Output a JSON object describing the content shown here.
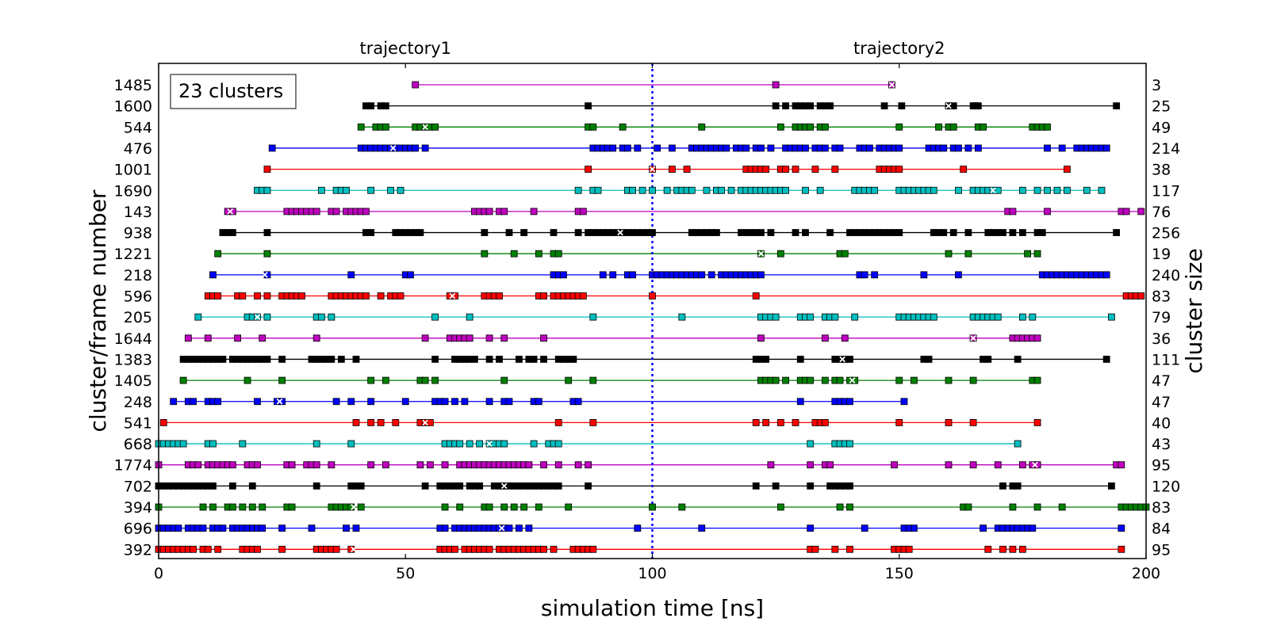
{
  "chart_data": {
    "type": "scatter",
    "xlabel": "simulation time [ns]",
    "ylabel": "cluster/frame number",
    "y2label": "cluster size",
    "xlim": [
      0,
      200
    ],
    "xticks": [
      0,
      50,
      100,
      150,
      200
    ],
    "top_labels": [
      "trajectory1",
      "trajectory2"
    ],
    "divider_x": 100,
    "divider_color": "#0000ff",
    "info_box": "23 clusters",
    "series": [
      {
        "frame": "1485",
        "size": "3",
        "color": "#bf00bf",
        "x": [
          52,
          125,
          148.5
        ],
        "centroid": 148.5
      },
      {
        "frame": "1600",
        "size": "25",
        "color": "#000000",
        "x": [
          42,
          43,
          45,
          46,
          87,
          125,
          127,
          129,
          130,
          131,
          132,
          134,
          135,
          136,
          147,
          150.5,
          160,
          161,
          165,
          165.5,
          166,
          194
        ],
        "centroid": 160
      },
      {
        "frame": "544",
        "size": "49",
        "color": "#008000",
        "x": [
          41,
          44,
          45,
          46,
          52,
          53,
          54,
          55,
          56,
          87,
          88,
          94,
          110,
          126,
          129,
          130,
          131,
          132,
          134,
          135,
          150,
          158,
          160,
          161,
          166,
          167,
          177,
          178,
          179,
          180
        ],
        "centroid": 54
      },
      {
        "frame": "476",
        "size": "214",
        "color": "#0000ff",
        "x": [
          23,
          41,
          42,
          43,
          44,
          45,
          46,
          47,
          48,
          49,
          50,
          51,
          52,
          54,
          88,
          89,
          90,
          91,
          92,
          94,
          95,
          97,
          101,
          104,
          108,
          109,
          110,
          111,
          112,
          113,
          114,
          115,
          117,
          118,
          119,
          121,
          122,
          124,
          127,
          128,
          129,
          130,
          131,
          133,
          134,
          135,
          137,
          138,
          142,
          143,
          144,
          146,
          147,
          148,
          149,
          150,
          156,
          157,
          158,
          159,
          161,
          162,
          164,
          166,
          180,
          183,
          186,
          187,
          188,
          189,
          190,
          191,
          192
        ],
        "centroid": 47.5
      },
      {
        "frame": "1001",
        "size": "38",
        "color": "#ff0000",
        "x": [
          22,
          87,
          100,
          104,
          107,
          119,
          120,
          121,
          122,
          123,
          126,
          127,
          129,
          133,
          137,
          146,
          147,
          148,
          149,
          150,
          163,
          184
        ],
        "centroid": 100
      },
      {
        "frame": "1690",
        "size": "117",
        "color": "#00bfbf",
        "x": [
          20,
          21,
          22,
          33,
          36,
          37,
          38,
          43,
          47,
          49,
          85,
          88,
          89,
          95,
          96,
          98,
          100,
          103,
          105,
          106,
          107,
          108,
          111,
          113,
          114,
          116,
          118,
          119,
          120,
          121,
          122,
          123,
          124,
          125,
          126,
          127,
          131,
          134,
          141,
          142,
          143,
          144,
          145,
          150,
          151,
          152,
          153,
          154,
          155,
          156,
          157,
          162,
          165,
          166,
          167,
          168,
          169,
          170,
          175,
          178,
          180,
          182,
          184,
          188,
          191
        ],
        "centroid": 169
      },
      {
        "frame": "143",
        "size": "76",
        "color": "#bf00bf",
        "x": [
          14,
          15,
          26,
          27,
          28,
          29,
          30,
          31,
          32,
          35,
          36,
          38,
          39,
          40,
          41,
          42,
          64,
          65,
          66,
          67,
          69,
          70,
          76,
          85,
          86,
          172,
          173,
          180,
          195,
          196,
          199
        ],
        "centroid": 14.5
      },
      {
        "frame": "938",
        "size": "256",
        "color": "#000000",
        "x": [
          13,
          14,
          15,
          22,
          42,
          43,
          48,
          49,
          50,
          51,
          52,
          53,
          66,
          71,
          74,
          80,
          85,
          87,
          88,
          89,
          90,
          91,
          92,
          93,
          94,
          95,
          96,
          97,
          98,
          99,
          100,
          108,
          109,
          110,
          111,
          112,
          113,
          118,
          119,
          120,
          121,
          122,
          124,
          129,
          131,
          136,
          140,
          141,
          142,
          143,
          144,
          145,
          146,
          147,
          148,
          149,
          150,
          157,
          158,
          159,
          161,
          164,
          168,
          169,
          170,
          171,
          173,
          175,
          178,
          179,
          194
        ],
        "centroid": 93.5
      },
      {
        "frame": "1221",
        "size": "19",
        "color": "#008000",
        "x": [
          12,
          22,
          66,
          72,
          77,
          80,
          81,
          122,
          126,
          138,
          139,
          160,
          164,
          176,
          178
        ],
        "centroid": 122
      },
      {
        "frame": "218",
        "size": "240",
        "color": "#0000ff",
        "x": [
          11,
          22,
          39,
          50,
          51,
          80,
          81,
          82,
          90,
          92,
          95,
          96,
          100,
          101,
          102,
          103,
          104,
          105,
          106,
          107,
          108,
          109,
          110,
          112,
          114,
          115,
          116,
          117,
          118,
          119,
          120,
          121,
          122,
          142,
          143,
          145,
          155,
          162,
          179,
          180,
          181,
          182,
          183,
          184,
          185,
          186,
          187,
          188,
          189,
          190,
          191,
          192
        ],
        "centroid": 21.5
      },
      {
        "frame": "596",
        "size": "83",
        "color": "#ff0000",
        "x": [
          10,
          11,
          12,
          16,
          17,
          20,
          22,
          25,
          26,
          27,
          28,
          29,
          35,
          36,
          37,
          38,
          39,
          40,
          41,
          42,
          45,
          47,
          48,
          49,
          59,
          60,
          66,
          67,
          68,
          69,
          77,
          78,
          80,
          81,
          82,
          83,
          84,
          85,
          86,
          100,
          121,
          196,
          197,
          198,
          199
        ],
        "centroid": 59.5
      },
      {
        "frame": "205",
        "size": "79",
        "color": "#00bfbf",
        "x": [
          8,
          18,
          19,
          20,
          22,
          32,
          33,
          35,
          56,
          63,
          88,
          106,
          122,
          123,
          124,
          125,
          130,
          131,
          132,
          135,
          136,
          137,
          141,
          150,
          151,
          152,
          153,
          154,
          155,
          156,
          157,
          165,
          166,
          167,
          168,
          169,
          170,
          175,
          177,
          193
        ],
        "centroid": 20
      },
      {
        "frame": "1644",
        "size": "36",
        "color": "#bf00bf",
        "x": [
          6,
          10,
          16,
          21,
          32,
          54,
          59,
          60,
          61,
          62,
          63,
          67,
          70,
          78,
          122,
          135,
          139,
          165,
          173,
          174,
          175,
          176,
          177,
          178
        ],
        "centroid": 165
      },
      {
        "frame": "1383",
        "size": "111",
        "color": "#000000",
        "x": [
          5,
          6,
          7,
          8,
          9,
          10,
          11,
          12,
          13,
          15,
          16,
          17,
          18,
          19,
          20,
          21,
          22,
          25,
          31,
          32,
          33,
          34,
          35,
          37,
          40,
          56,
          60,
          61,
          62,
          63,
          64,
          67,
          69,
          73,
          75,
          76,
          78,
          81,
          82,
          83,
          84,
          121,
          122,
          123,
          130,
          137,
          138,
          139,
          140,
          155,
          156,
          167,
          168,
          174,
          192
        ],
        "centroid": 138.5
      },
      {
        "frame": "1405",
        "size": "47",
        "color": "#008000",
        "x": [
          5,
          18,
          25,
          43,
          46,
          53,
          54,
          56,
          70,
          83,
          88,
          122,
          123,
          124,
          125,
          127,
          130,
          131,
          132,
          135,
          137,
          138,
          140,
          141,
          150,
          153,
          160,
          165,
          177,
          178
        ],
        "centroid": 140.5
      },
      {
        "frame": "248",
        "size": "47",
        "color": "#0000ff",
        "x": [
          3,
          6,
          7,
          10,
          11,
          12,
          20,
          24,
          25,
          36,
          39,
          43,
          50,
          56,
          57,
          58,
          60,
          62,
          67,
          70,
          71,
          76,
          77,
          84,
          85,
          130,
          137,
          138,
          139,
          140,
          151
        ],
        "centroid": 24.5
      },
      {
        "frame": "541",
        "size": "40",
        "color": "#ff0000",
        "x": [
          1,
          40,
          43,
          45,
          48,
          53,
          54,
          55,
          81,
          88,
          121,
          123,
          126,
          129,
          133,
          134,
          135,
          150,
          160,
          165,
          178
        ],
        "centroid": 54
      },
      {
        "frame": "668",
        "size": "43",
        "color": "#00bfbf",
        "x": [
          0,
          1,
          2,
          3,
          4,
          5,
          10,
          11,
          17,
          32,
          39,
          58,
          59,
          60,
          61,
          63,
          65,
          67,
          68,
          69,
          70,
          76,
          79,
          80,
          81,
          132,
          137,
          138,
          139,
          140,
          174
        ],
        "centroid": 67
      },
      {
        "frame": "1774",
        "size": "95",
        "color": "#bf00bf",
        "x": [
          0,
          6,
          7,
          8,
          10,
          11,
          12,
          13,
          14,
          15,
          18,
          19,
          20,
          26,
          27,
          30,
          31,
          32,
          35,
          43,
          46,
          53,
          55,
          58,
          61,
          62,
          63,
          64,
          65,
          66,
          67,
          68,
          69,
          70,
          71,
          72,
          73,
          74,
          75,
          78,
          81,
          85,
          87,
          124,
          132,
          135,
          136,
          149,
          160,
          165,
          170,
          175,
          177,
          178,
          194,
          195
        ],
        "centroid": 177.5
      },
      {
        "frame": "702",
        "size": "120",
        "color": "#000000",
        "x": [
          0,
          1,
          2,
          3,
          4,
          5,
          6,
          7,
          8,
          9,
          10,
          11,
          15,
          19,
          32,
          39,
          40,
          41,
          54,
          57,
          58,
          59,
          60,
          61,
          63,
          64,
          65,
          68,
          69,
          70,
          71,
          72,
          73,
          74,
          75,
          76,
          77,
          78,
          79,
          80,
          81,
          87,
          121,
          125,
          132,
          136,
          137,
          138,
          139,
          140,
          171,
          173,
          174,
          193
        ],
        "centroid": 70
      },
      {
        "frame": "394",
        "size": "83",
        "color": "#008000",
        "x": [
          0,
          9,
          11,
          14,
          15,
          17,
          19,
          21,
          26,
          27,
          35,
          36,
          37,
          38,
          39,
          41,
          58,
          61,
          66,
          67,
          70,
          72,
          74,
          77,
          83,
          100,
          106,
          126,
          138,
          140,
          163,
          164,
          173,
          178,
          183,
          195,
          196,
          197,
          198,
          199,
          200
        ],
        "centroid": 39.5
      },
      {
        "frame": "696",
        "size": "84",
        "color": "#0000ff",
        "x": [
          0,
          1,
          2,
          3,
          4,
          6,
          7,
          8,
          9,
          11,
          12,
          13,
          15,
          16,
          17,
          18,
          19,
          20,
          21,
          25,
          31,
          38,
          40,
          57,
          58,
          60,
          61,
          62,
          63,
          64,
          65,
          66,
          67,
          68,
          69,
          70,
          71,
          73,
          75,
          97,
          110,
          132,
          143,
          151,
          152,
          153,
          167,
          170,
          171,
          172,
          173,
          174,
          175,
          176,
          177,
          195
        ],
        "centroid": 69.5
      },
      {
        "frame": "392",
        "size": "95",
        "color": "#ff0000",
        "x": [
          0,
          1,
          2,
          3,
          4,
          5,
          6,
          7,
          9,
          10,
          12,
          17,
          18,
          19,
          20,
          25,
          32,
          33,
          34,
          35,
          36,
          39,
          57,
          58,
          59,
          60,
          62,
          63,
          64,
          65,
          66,
          67,
          69,
          70,
          71,
          72,
          73,
          74,
          75,
          76,
          77,
          78,
          80,
          84,
          85,
          86,
          87,
          88,
          132,
          133,
          137,
          140,
          149,
          150,
          151,
          152,
          168,
          171,
          173,
          175,
          195
        ],
        "centroid": 39.5
      }
    ]
  }
}
